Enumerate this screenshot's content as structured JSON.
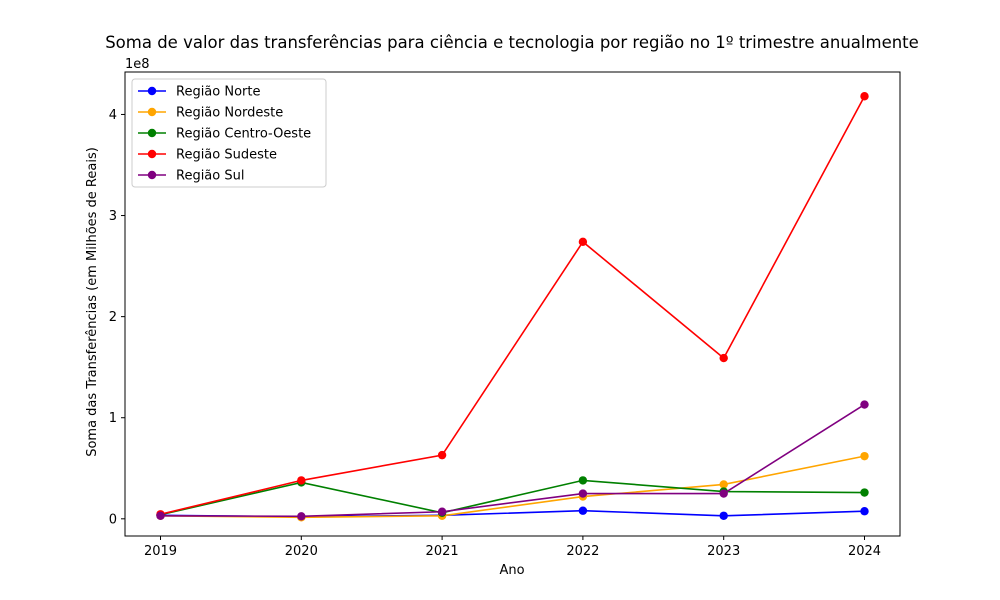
{
  "chart_data": {
    "type": "line",
    "title": "Soma de valor das transferências para ciência e tecnologia por região no 1º trimestre anualmente",
    "xlabel": "Ano",
    "ylabel": "Soma das Transferências (em Milhões de Reais)",
    "y_offset_label": "1e8",
    "x": [
      "2019",
      "2020",
      "2021",
      "2022",
      "2023",
      "2024"
    ],
    "ylim": [
      -17000000,
      442000000
    ],
    "yticks": [
      0,
      100000000,
      200000000,
      300000000,
      400000000
    ],
    "ytick_labels": [
      "0",
      "1",
      "2",
      "3",
      "4"
    ],
    "grid": false,
    "legend_position": "upper-left",
    "series": [
      {
        "name": "Região Norte",
        "color": "#0000ff",
        "values": [
          3500000,
          2000000,
          3500000,
          8000000,
          3000000,
          7500000
        ]
      },
      {
        "name": "Região Nordeste",
        "color": "#ffa500",
        "values": [
          3000000,
          1500000,
          3000000,
          22000000,
          34000000,
          62000000
        ]
      },
      {
        "name": "Região Centro-Oeste",
        "color": "#008000",
        "values": [
          4000000,
          36000000,
          6000000,
          38000000,
          27000000,
          26000000
        ]
      },
      {
        "name": "Região Sudeste",
        "color": "#ff0000",
        "values": [
          4500000,
          38000000,
          63000000,
          274000000,
          159000000,
          418000000
        ]
      },
      {
        "name": "Região Sul",
        "color": "#800080",
        "values": [
          3000000,
          2500000,
          7000000,
          25000000,
          25000000,
          113000000
        ]
      }
    ]
  }
}
